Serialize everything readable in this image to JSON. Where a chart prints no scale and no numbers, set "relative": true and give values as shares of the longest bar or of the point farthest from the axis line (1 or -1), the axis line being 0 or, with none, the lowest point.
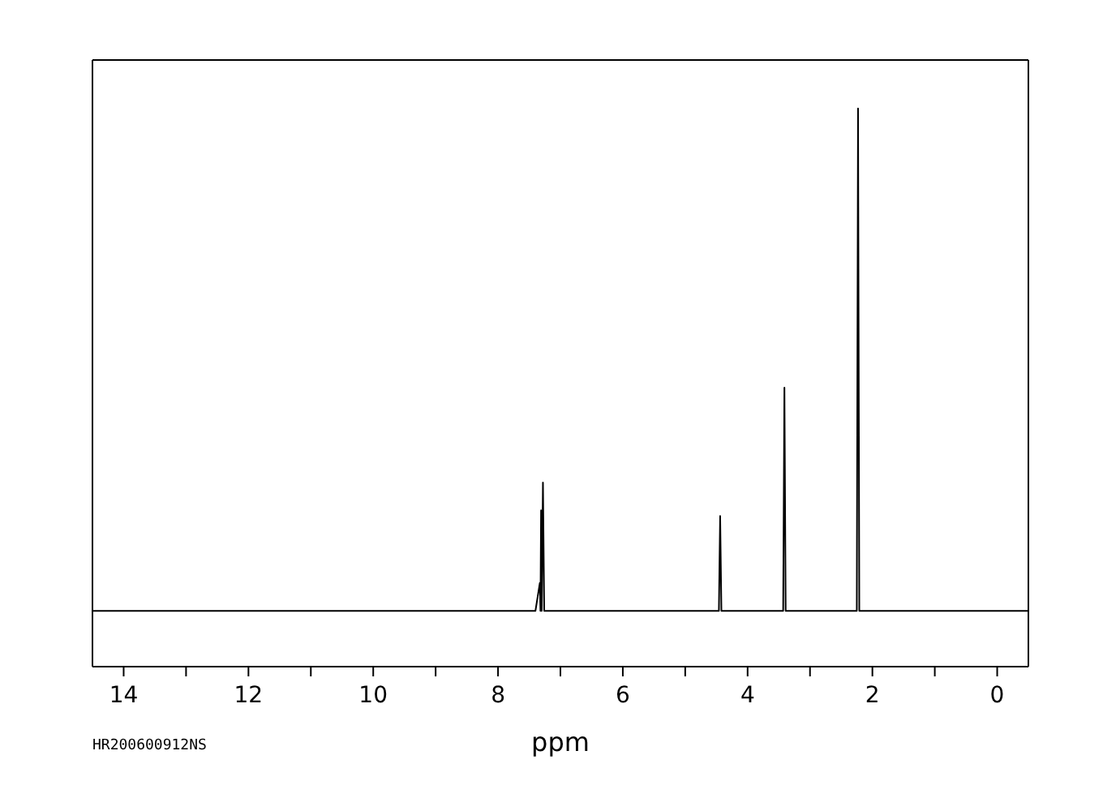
{
  "chart_data": {
    "type": "line",
    "relative": true,
    "xlabel": "ppm",
    "annotations": [
      "HR200600912NS"
    ],
    "xlim": [
      14.5,
      -0.5
    ],
    "xticks": [
      14,
      {
        "value": 13,
        "label": null
      },
      12,
      {
        "value": 11,
        "label": null
      },
      10,
      {
        "value": 9,
        "label": null
      },
      8,
      {
        "value": 7,
        "label": null
      },
      6,
      {
        "value": 5,
        "label": null
      },
      4,
      {
        "value": 3,
        "label": null
      },
      2,
      {
        "value": 1,
        "label": null
      },
      0
    ],
    "x": [
      14.5,
      7.4,
      7.33,
      7.32,
      7.31,
      7.3,
      7.28,
      7.26,
      4.46,
      4.44,
      4.42,
      3.43,
      3.41,
      3.39,
      2.25,
      2.23,
      2.21,
      -0.5
    ],
    "series": [
      {
        "color": "#000000",
        "values": [
          0.1,
          0.1,
          0.15,
          0.1,
          0.28,
          0.1,
          0.33,
          0.1,
          0.1,
          0.27,
          0.1,
          0.1,
          0.5,
          0.1,
          0.1,
          1,
          0.1,
          0.1
        ]
      }
    ],
    "marker": "none",
    "line_style": "solid"
  }
}
